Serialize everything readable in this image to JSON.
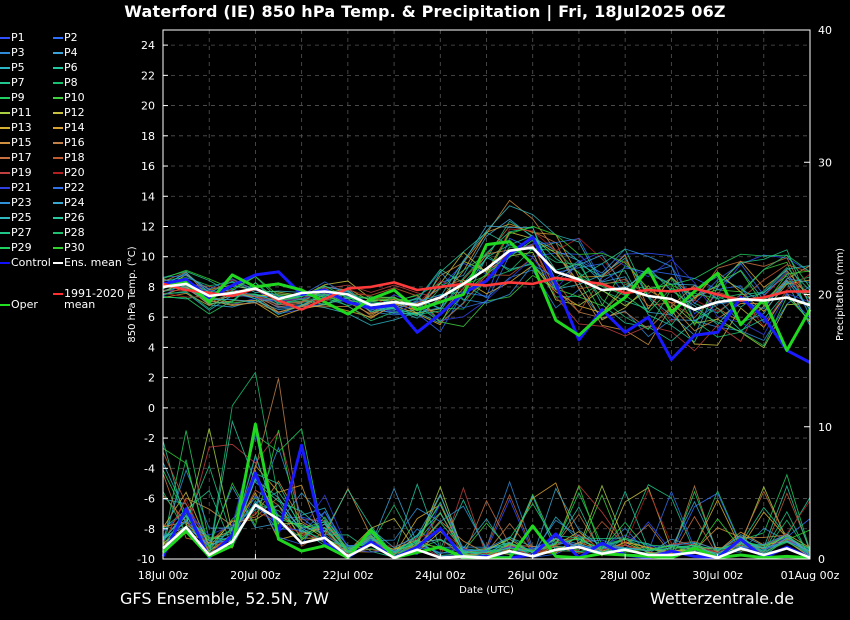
{
  "title": "Waterford  (IE)  850 hPa Temp. & Precipitation | Fri, 18Jul2025 06Z",
  "footer_left": "GFS Ensemble, 52.5N, 7W",
  "footer_right": "Wetterzentrale.de",
  "legend": [
    {
      "label": "P1",
      "color": "#3050ff"
    },
    {
      "label": "P2",
      "color": "#2f6fff"
    },
    {
      "label": "P3",
      "color": "#2f8ad8"
    },
    {
      "label": "P4",
      "color": "#3aa3d8"
    },
    {
      "label": "P5",
      "color": "#2bb6c8"
    },
    {
      "label": "P6",
      "color": "#22c8a0"
    },
    {
      "label": "P7",
      "color": "#20c890"
    },
    {
      "label": "P8",
      "color": "#18c070"
    },
    {
      "label": "P9",
      "color": "#20d060"
    },
    {
      "label": "P10",
      "color": "#40d040"
    },
    {
      "label": "P11",
      "color": "#a8d040"
    },
    {
      "label": "P12",
      "color": "#c8c040"
    },
    {
      "label": "P13",
      "color": "#d8b030"
    },
    {
      "label": "P14",
      "color": "#d8a030"
    },
    {
      "label": "P15",
      "color": "#d09040"
    },
    {
      "label": "P16",
      "color": "#c08048"
    },
    {
      "label": "P17",
      "color": "#c87040"
    },
    {
      "label": "P18",
      "color": "#c05a30"
    },
    {
      "label": "P19",
      "color": "#c04040"
    },
    {
      "label": "P20",
      "color": "#b02020"
    },
    {
      "label": "P21",
      "color": "#3040e0"
    },
    {
      "label": "P22",
      "color": "#3070e8"
    },
    {
      "label": "P23",
      "color": "#3090d8"
    },
    {
      "label": "P24",
      "color": "#3aa8d0"
    },
    {
      "label": "P25",
      "color": "#30b8c0"
    },
    {
      "label": "P26",
      "color": "#28c8a0"
    },
    {
      "label": "P27",
      "color": "#20c888"
    },
    {
      "label": "P28",
      "color": "#20c070"
    },
    {
      "label": "P29",
      "color": "#20d060"
    },
    {
      "label": "P30",
      "color": "#30d030"
    },
    {
      "label": "Control",
      "color": "#1010ff"
    },
    {
      "label": "Ens. mean",
      "color": "#ffffff"
    },
    {
      "label": "1991-2020 mean",
      "color": "#ff3030"
    },
    {
      "label": "Oper",
      "color": "#20e020"
    }
  ],
  "chart_data": {
    "type": "line",
    "title": "Waterford  (IE)  850 hPa Temp. & Precipitation | Fri, 18Jul2025 06Z",
    "xlabel": "Date (UTC)",
    "ylabel": "850 hPa Temp. (°C)",
    "y2label": "Precipitation (mm)",
    "x_range_days": [
      0,
      14
    ],
    "x_ticks": [
      "18Jul 00z",
      "20Jul 00z",
      "22Jul 00z",
      "24Jul 00z",
      "26Jul 00z",
      "28Jul 00z",
      "30Jul 00z",
      "01Aug 00z"
    ],
    "ylim": [
      -10,
      25
    ],
    "y_ticks": [
      -10,
      -8,
      -6,
      -4,
      -2,
      0,
      2,
      4,
      6,
      8,
      10,
      12,
      14,
      16,
      18,
      20,
      22,
      24
    ],
    "y2lim": [
      0,
      40
    ],
    "y2_ticks": [
      0,
      10,
      20,
      30,
      40
    ],
    "grid": true,
    "series": [
      {
        "name": "Ens. mean",
        "x": [
          0,
          0.5,
          1,
          1.5,
          2,
          2.5,
          3,
          3.5,
          4,
          4.5,
          5,
          5.5,
          6,
          6.5,
          7,
          7.5,
          8,
          8.5,
          9,
          9.5,
          10,
          10.5,
          11,
          11.5,
          12,
          12.5,
          13,
          13.5,
          14
        ],
        "values": [
          8.0,
          8.2,
          7.4,
          7.6,
          7.9,
          7.2,
          7.6,
          7.7,
          7.5,
          6.8,
          7.0,
          6.8,
          7.3,
          8.2,
          9.2,
          10.4,
          10.6,
          9.0,
          8.5,
          7.8,
          7.9,
          7.4,
          7.2,
          6.5,
          7.0,
          7.2,
          7.1,
          7.3,
          6.8
        ]
      },
      {
        "name": "1991-2020 mean",
        "x": [
          0,
          0.5,
          1,
          1.5,
          2,
          2.5,
          3,
          3.5,
          4,
          4.5,
          5,
          5.5,
          6,
          6.5,
          7,
          7.5,
          8,
          8.5,
          9,
          9.5,
          10,
          10.5,
          11,
          11.5,
          12,
          12.5,
          13,
          13.5,
          14
        ],
        "values": [
          8.2,
          7.8,
          7.6,
          7.4,
          7.9,
          7.1,
          6.5,
          7.2,
          7.9,
          8.0,
          8.3,
          7.8,
          8.0,
          8.2,
          8.1,
          8.3,
          8.2,
          8.6,
          8.4,
          8.2,
          7.6,
          7.8,
          7.7,
          7.9,
          7.5,
          7.1,
          7.3,
          7.7,
          7.7
        ]
      },
      {
        "name": "Control",
        "x": [
          0,
          0.5,
          1,
          1.5,
          2,
          2.5,
          3,
          3.5,
          4,
          4.5,
          5,
          5.5,
          6,
          6.5,
          7,
          7.5,
          8,
          8.5,
          9,
          9.5,
          10,
          10.5,
          11,
          11.5,
          12,
          12.5,
          13,
          13.5,
          14
        ],
        "values": [
          8.2,
          8.5,
          7.3,
          8.1,
          8.8,
          9.0,
          7.5,
          7.8,
          7.0,
          6.6,
          6.8,
          5.0,
          6.2,
          7.6,
          8.4,
          10.2,
          11.3,
          8.2,
          4.5,
          6.5,
          5.0,
          6.0,
          3.2,
          4.8,
          5.0,
          7.3,
          6.0,
          3.8,
          3.0
        ]
      },
      {
        "name": "Oper",
        "x": [
          0,
          0.5,
          1,
          1.5,
          2,
          2.5,
          3,
          3.5,
          4,
          4.5,
          5,
          5.5,
          6,
          6.5,
          7,
          7.5,
          8,
          8.5,
          9,
          9.5,
          10,
          10.5,
          11,
          11.5,
          12,
          12.5,
          13,
          13.5,
          14
        ],
        "values": [
          8.0,
          8.3,
          7.0,
          8.8,
          8.0,
          8.2,
          7.8,
          7.0,
          6.2,
          7.2,
          7.8,
          6.5,
          7.0,
          7.5,
          10.8,
          11.0,
          9.5,
          5.8,
          4.8,
          6.2,
          7.3,
          9.2,
          6.3,
          7.7,
          8.9,
          5.5,
          7.2,
          3.8,
          6.5
        ]
      },
      {
        "name": "Ens. mean precip",
        "axis": "right",
        "x": [
          0,
          0.5,
          1,
          1.5,
          2,
          2.5,
          3,
          3.5,
          4,
          4.5,
          5,
          5.5,
          6,
          6.5,
          7,
          7.5,
          8,
          8.5,
          9,
          9.5,
          10,
          10.5,
          11,
          11.5,
          12,
          12.5,
          13,
          13.5,
          14
        ],
        "values": [
          0.8,
          2.4,
          0.3,
          1.3,
          4.1,
          3.0,
          1.2,
          1.6,
          0.2,
          1.1,
          0.1,
          0.7,
          0.1,
          0.2,
          0.1,
          0.6,
          0.2,
          0.7,
          0.9,
          0.4,
          0.7,
          0.3,
          0.3,
          0.5,
          0.1,
          0.8,
          0.3,
          0.8,
          0.1
        ]
      },
      {
        "name": "Control precip",
        "axis": "right",
        "x": [
          0,
          0.5,
          1,
          1.5,
          2,
          2.5,
          3,
          3.5,
          4,
          4.5,
          5,
          5.5,
          6,
          6.5,
          7,
          7.5,
          8,
          8.5,
          9,
          9.5,
          10,
          10.5,
          11,
          11.5,
          12,
          12.5,
          13,
          13.5,
          14
        ],
        "values": [
          0.2,
          3.8,
          0.1,
          1.8,
          6.5,
          2.0,
          8.6,
          1.2,
          0.1,
          1.3,
          0.1,
          0.9,
          2.3,
          0.1,
          0.2,
          0.1,
          0.3,
          1.9,
          0.1,
          1.2,
          0.3,
          0.1,
          0.6,
          0.2,
          0.1,
          1.5,
          0.1,
          0.9,
          0.1
        ]
      },
      {
        "name": "Oper precip",
        "axis": "right",
        "x": [
          0,
          0.5,
          1,
          1.5,
          2,
          2.5,
          3,
          3.5,
          4,
          4.5,
          5,
          5.5,
          6,
          6.5,
          7,
          7.5,
          8,
          8.5,
          9,
          9.5,
          10,
          10.5,
          11,
          11.5,
          12,
          12.5,
          13,
          13.5,
          14
        ],
        "values": [
          0.5,
          2.1,
          0.2,
          1.0,
          10.2,
          1.5,
          0.6,
          1.0,
          0.1,
          2.2,
          0.1,
          0.5,
          0.9,
          0.1,
          0.1,
          0.1,
          2.5,
          0.2,
          0.1,
          0.4,
          0.3,
          0.2,
          0.1,
          0.8,
          0.1,
          0.3,
          0.1,
          0.2,
          0.1
        ]
      }
    ]
  }
}
